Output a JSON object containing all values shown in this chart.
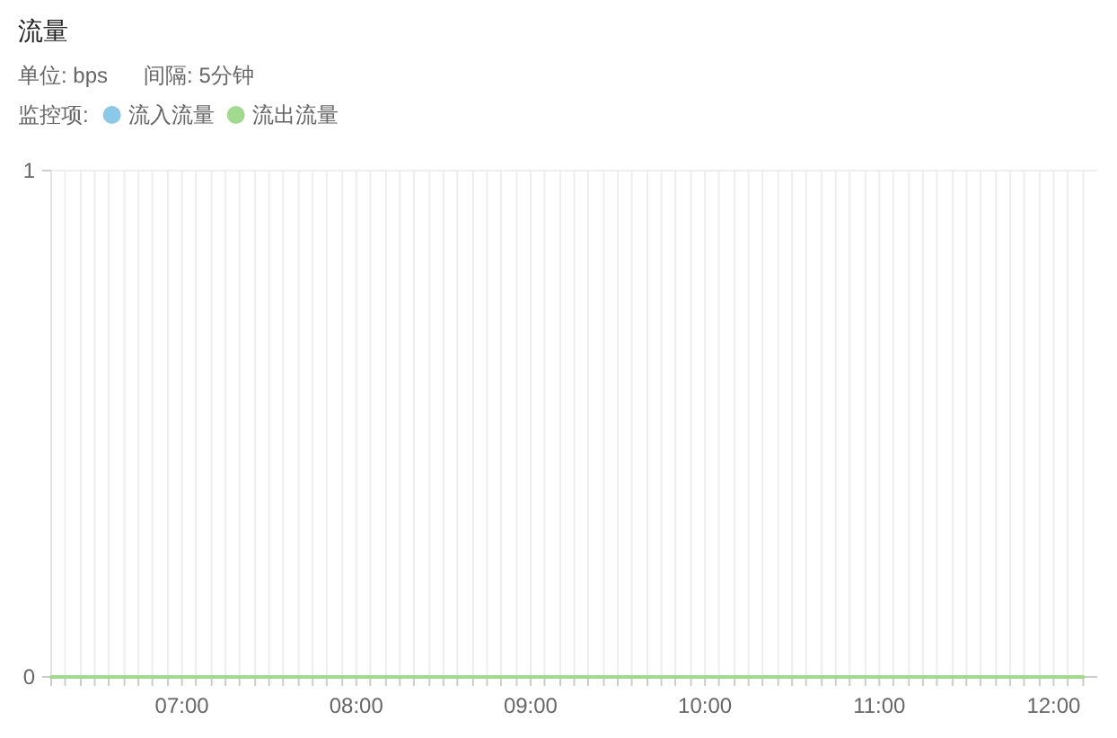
{
  "chart_data": {
    "type": "line",
    "title": "流量",
    "subtitle": "单位: bps      间隔: 5分钟",
    "legend_title": "监控项:",
    "x": [
      6.25,
      12.17
    ],
    "series": [
      {
        "name": "流入流量",
        "color": "#8cc9e8",
        "values": [
          null,
          null
        ]
      },
      {
        "name": "流出流量",
        "color": "#a1d98f",
        "values": [
          0,
          0
        ]
      }
    ],
    "xlim": [
      6.25,
      12.25
    ],
    "xticks": [
      {
        "value": 6.25,
        "label": null
      },
      {
        "value": 6.33,
        "label": null
      },
      {
        "value": 6.42,
        "label": null
      },
      {
        "value": 6.5,
        "label": null
      },
      {
        "value": 6.58,
        "label": null
      },
      {
        "value": 6.67,
        "label": null
      },
      {
        "value": 6.75,
        "label": null
      },
      {
        "value": 6.83,
        "label": null
      },
      {
        "value": 6.92,
        "label": null
      },
      {
        "value": 7,
        "label": "07:00"
      },
      {
        "value": 7.08,
        "label": null
      },
      {
        "value": 7.17,
        "label": null
      },
      {
        "value": 7.25,
        "label": null
      },
      {
        "value": 7.33,
        "label": null
      },
      {
        "value": 7.42,
        "label": null
      },
      {
        "value": 7.5,
        "label": null
      },
      {
        "value": 7.58,
        "label": null
      },
      {
        "value": 7.67,
        "label": null
      },
      {
        "value": 7.75,
        "label": null
      },
      {
        "value": 7.83,
        "label": null
      },
      {
        "value": 7.92,
        "label": null
      },
      {
        "value": 8,
        "label": "08:00"
      },
      {
        "value": 8.08,
        "label": null
      },
      {
        "value": 8.17,
        "label": null
      },
      {
        "value": 8.25,
        "label": null
      },
      {
        "value": 8.33,
        "label": null
      },
      {
        "value": 8.42,
        "label": null
      },
      {
        "value": 8.5,
        "label": null
      },
      {
        "value": 8.58,
        "label": null
      },
      {
        "value": 8.67,
        "label": null
      },
      {
        "value": 8.75,
        "label": null
      },
      {
        "value": 8.83,
        "label": null
      },
      {
        "value": 8.92,
        "label": null
      },
      {
        "value": 9,
        "label": "09:00"
      },
      {
        "value": 9.08,
        "label": null
      },
      {
        "value": 9.17,
        "label": null
      },
      {
        "value": 9.25,
        "label": null
      },
      {
        "value": 9.33,
        "label": null
      },
      {
        "value": 9.42,
        "label": null
      },
      {
        "value": 9.5,
        "label": null
      },
      {
        "value": 9.58,
        "label": null
      },
      {
        "value": 9.67,
        "label": null
      },
      {
        "value": 9.75,
        "label": null
      },
      {
        "value": 9.83,
        "label": null
      },
      {
        "value": 9.92,
        "label": null
      },
      {
        "value": 10,
        "label": "10:00"
      },
      {
        "value": 10.08,
        "label": null
      },
      {
        "value": 10.17,
        "label": null
      },
      {
        "value": 10.25,
        "label": null
      },
      {
        "value": 10.33,
        "label": null
      },
      {
        "value": 10.42,
        "label": null
      },
      {
        "value": 10.5,
        "label": null
      },
      {
        "value": 10.58,
        "label": null
      },
      {
        "value": 10.67,
        "label": null
      },
      {
        "value": 10.75,
        "label": null
      },
      {
        "value": 10.83,
        "label": null
      },
      {
        "value": 10.92,
        "label": null
      },
      {
        "value": 11,
        "label": "11:00"
      },
      {
        "value": 11.08,
        "label": null
      },
      {
        "value": 11.17,
        "label": null
      },
      {
        "value": 11.25,
        "label": null
      },
      {
        "value": 11.33,
        "label": null
      },
      {
        "value": 11.42,
        "label": null
      },
      {
        "value": 11.5,
        "label": null
      },
      {
        "value": 11.58,
        "label": null
      },
      {
        "value": 11.67,
        "label": null
      },
      {
        "value": 11.75,
        "label": null
      },
      {
        "value": 11.83,
        "label": null
      },
      {
        "value": 11.92,
        "label": null
      },
      {
        "value": 12,
        "label": "12:00"
      },
      {
        "value": 12.08,
        "label": null
      },
      {
        "value": 12.17,
        "label": null
      }
    ],
    "ylim": [
      0,
      1
    ],
    "yticks": [
      0,
      1
    ],
    "grid": true,
    "legend": "top left"
  }
}
